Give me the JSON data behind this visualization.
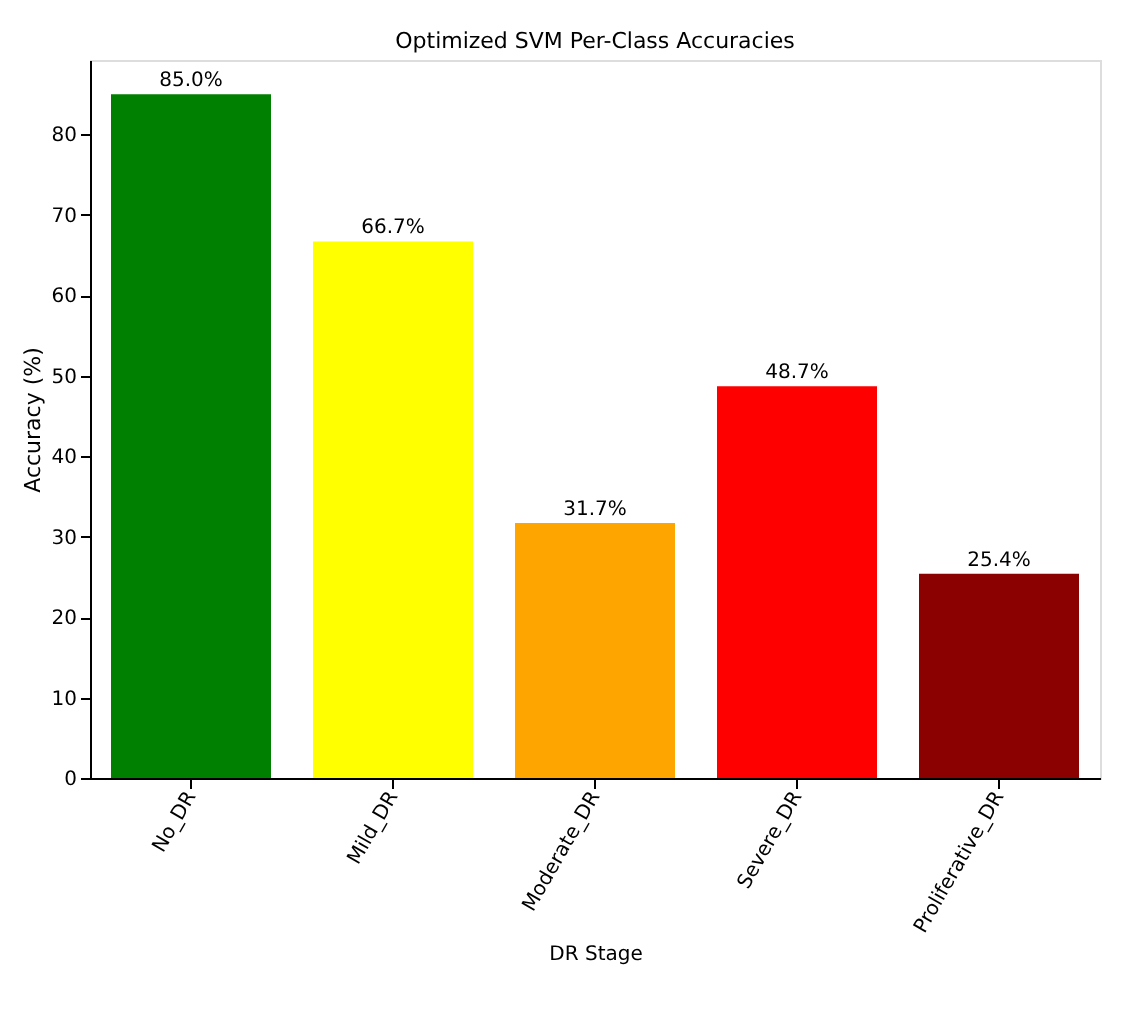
{
  "chart_data": {
    "type": "bar",
    "title": "Optimized SVM Per-Class Accuracies",
    "xlabel": "DR Stage",
    "ylabel": "Accuracy (%)",
    "categories": [
      "No_DR",
      "Mild_DR",
      "Moderate_DR",
      "Severe_DR",
      "Proliferative_DR"
    ],
    "values": [
      85.0,
      66.7,
      31.7,
      48.7,
      25.4
    ],
    "colors": [
      "#008000",
      "#ffff00",
      "#ffa500",
      "#ff0000",
      "#8b0000"
    ],
    "value_labels": [
      "85.0%",
      "66.7%",
      "31.7%",
      "48.7%",
      "25.4%"
    ],
    "ylim": [
      0,
      89.25
    ],
    "yticks": [
      0,
      10,
      20,
      30,
      40,
      50,
      60,
      70,
      80
    ],
    "grid": false
  }
}
